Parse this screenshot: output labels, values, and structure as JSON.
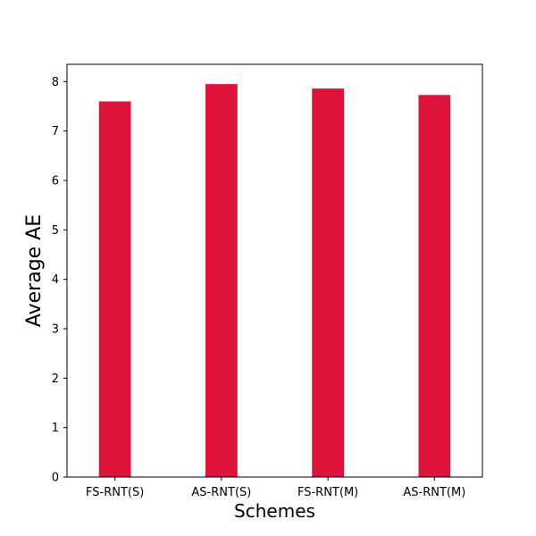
{
  "chart_data": {
    "type": "bar",
    "title": "",
    "xlabel": "Schemes",
    "ylabel": "Average AE",
    "categories": [
      "FS-RNT(S)",
      "AS-RNT(S)",
      "FS-RNT(M)",
      "AS-RNT(M)"
    ],
    "values": [
      7.6,
      7.95,
      7.86,
      7.73
    ],
    "ylim": [
      0,
      8.35
    ],
    "yticks": [
      "0",
      "1",
      "2",
      "3",
      "4",
      "5",
      "6",
      "7",
      "8"
    ],
    "bar_color": "#dc143c",
    "grid": false,
    "legend": "none"
  }
}
